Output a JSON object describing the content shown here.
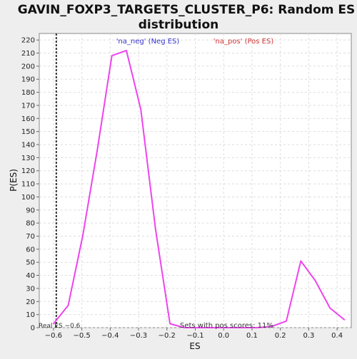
{
  "chart_data": {
    "type": "line",
    "title_line1": "GAVIN_FOXP3_TARGETS_CLUSTER_P6: Random ES",
    "title_line2": "distribution",
    "xlabel": "ES",
    "ylabel": "P(ES)",
    "xlim": [
      -0.65,
      0.45
    ],
    "ylim": [
      0,
      225
    ],
    "x_ticks": [
      -0.6,
      -0.5,
      -0.4,
      -0.3,
      -0.2,
      -0.1,
      0.0,
      0.1,
      0.2,
      0.3,
      0.4
    ],
    "x_tick_labels": [
      "−0.6",
      "−0.5",
      "−0.4",
      "−0.3",
      "−0.2",
      "−0.1",
      "0.0",
      "0.1",
      "0.2",
      "0.3",
      "0.4"
    ],
    "y_ticks": [
      0,
      10,
      20,
      30,
      40,
      50,
      60,
      70,
      80,
      90,
      100,
      110,
      120,
      130,
      140,
      150,
      160,
      170,
      180,
      190,
      200,
      210,
      220
    ],
    "grid": true,
    "series": [
      {
        "color": "#ee44ee",
        "x": [
          -0.6,
          -0.548,
          -0.497,
          -0.446,
          -0.394,
          -0.343,
          -0.292,
          -0.24,
          -0.189,
          -0.138,
          -0.087,
          -0.035,
          0.016,
          0.067,
          0.118,
          0.17,
          0.221,
          0.272,
          0.323,
          0.375,
          0.426
        ],
        "values": [
          3,
          17,
          70,
          135,
          208,
          212,
          167,
          75,
          3,
          0,
          0,
          0,
          0,
          0,
          0,
          1,
          5,
          51,
          36,
          15,
          6
        ]
      }
    ],
    "real_es": {
      "value": -0.59,
      "label": "Real ES −0.6"
    },
    "annotations": {
      "neg_label": "'na_neg' (Neg ES)",
      "neg_color": "#3333cc",
      "pos_label": "'na_pos' (Pos ES)",
      "pos_color": "#cc3333",
      "pos_scores_label": "Sets with pos scores: 11%"
    }
  }
}
